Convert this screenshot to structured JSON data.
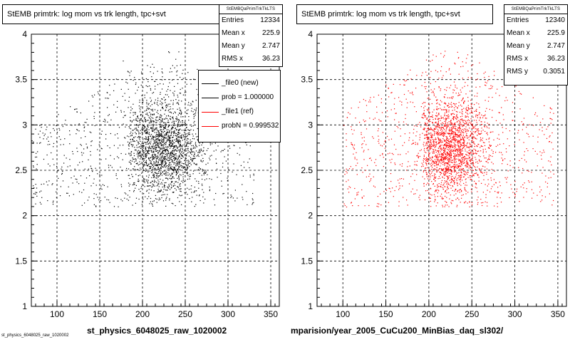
{
  "chart_data": [
    {
      "type": "scatter",
      "title": "StEMB primtrk: log mom vs trk length, tpc+svt",
      "xlabel": "st_physics_6048025_raw_1020002",
      "ylabel": "",
      "xlim": [
        70,
        360
      ],
      "ylim": [
        1,
        4
      ],
      "x_ticks": [
        100,
        150,
        200,
        250,
        300,
        350
      ],
      "y_ticks": [
        1,
        1.5,
        2,
        2.5,
        3,
        3.5,
        4
      ],
      "grid": true,
      "marker_color": "#000000",
      "density": {
        "x_range": [
          70,
          330
        ],
        "y_range": [
          2.1,
          3.85
        ],
        "core_x": [
          175,
          270
        ],
        "core_y": [
          2.2,
          3.5
        ]
      },
      "stats": {
        "header": "StEMBQaPrimTrkTkLTS",
        "entries": "12334",
        "mean_x": "225.9",
        "mean_y": "2.747",
        "rms_x": "36.23"
      },
      "legend": [
        {
          "label": "_file0 (new)",
          "color": "#000000"
        },
        {
          "label": "prob = 1.000000",
          "color": "#000000"
        },
        {
          "label": "_file1 (ref)",
          "color": "#ff0000"
        },
        {
          "label": "probN = 0.999532",
          "color": "#ff0000"
        }
      ]
    },
    {
      "type": "scatter",
      "title": "StEMB primtrk: log mom vs trk length, tpc+svt",
      "xlabel": "mparision/year_2005_CuCu200_MinBias_daq_sl302/",
      "ylabel": "",
      "xlim": [
        70,
        360
      ],
      "ylim": [
        1,
        4
      ],
      "x_ticks": [
        100,
        150,
        200,
        250,
        300,
        350
      ],
      "y_ticks": [
        1,
        1.5,
        2,
        2.5,
        3,
        3.5,
        4
      ],
      "grid": true,
      "marker_color": "#ff0000",
      "density": {
        "x_range": [
          100,
          345
        ],
        "y_range": [
          2.1,
          3.9
        ],
        "core_x": [
          185,
          270
        ],
        "core_y": [
          2.2,
          3.5
        ]
      },
      "stats": {
        "header": "StEMBQaPrimTrkTkLTS",
        "entries": "12340",
        "mean_x": "225.9",
        "mean_y": "2.747",
        "rms_x": "36.23",
        "rms_y": "0.3051"
      }
    }
  ],
  "stat_labels": {
    "entries": "Entries",
    "mean_x": "Mean x",
    "mean_y": "Mean y",
    "rms_x": "RMS x",
    "rms_y": "RMS y"
  },
  "footer": "st_physics_6048025_raw_1020002"
}
